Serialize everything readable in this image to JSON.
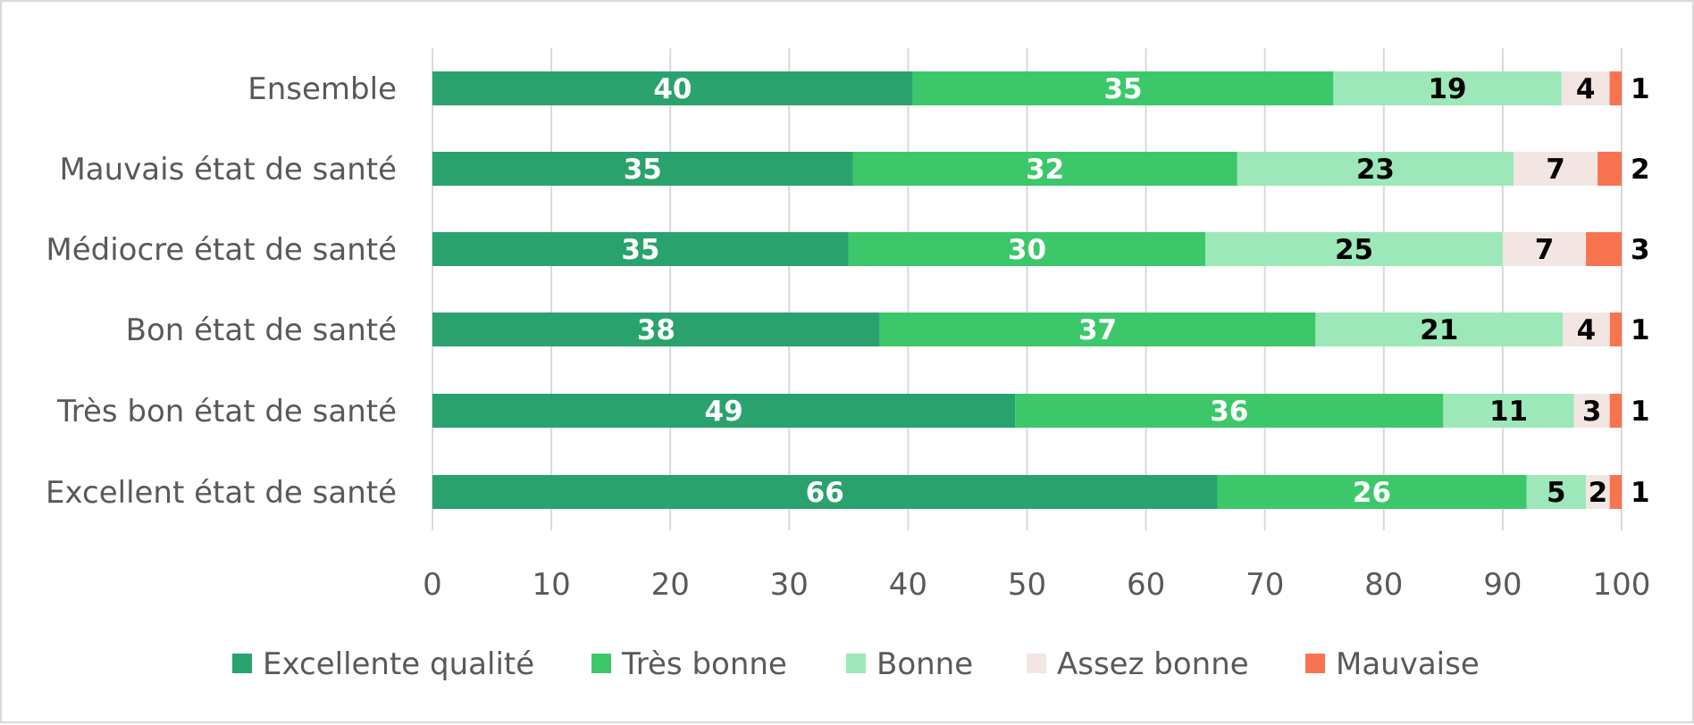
{
  "chart_data": {
    "type": "bar",
    "orientation": "horizontal",
    "stacked": true,
    "categories": [
      "Ensemble",
      "Mauvais état de santé",
      "Médiocre état de santé",
      "Bon état de santé",
      "Très bon état de santé",
      "Excellent état de santé"
    ],
    "series": [
      {
        "name": "Excellente qualité",
        "color": "#2aa26d",
        "label_color": "#ffffff",
        "values": [
          40,
          35,
          35,
          38,
          49,
          66
        ]
      },
      {
        "name": "Très bonne",
        "color": "#3cc86a",
        "label_color": "#ffffff",
        "values": [
          35,
          32,
          30,
          37,
          36,
          26
        ]
      },
      {
        "name": "Bonne",
        "color": "#9de8b8",
        "label_color": "#000000",
        "values": [
          19,
          23,
          25,
          21,
          11,
          5
        ]
      },
      {
        "name": "Assez bonne",
        "color": "#f3e6e2",
        "label_color": "#000000",
        "values": [
          4,
          7,
          7,
          4,
          3,
          2
        ]
      },
      {
        "name": "Mauvaise",
        "color": "#f87451",
        "label_color": "#000000",
        "values": [
          1,
          2,
          3,
          1,
          1,
          1
        ]
      }
    ],
    "xlim": [
      0,
      100
    ],
    "x_ticks": [
      "0",
      "10",
      "20",
      "30",
      "40",
      "50",
      "60",
      "70",
      "80",
      "90",
      "100"
    ],
    "grid": true,
    "legend_position": "bottom"
  }
}
